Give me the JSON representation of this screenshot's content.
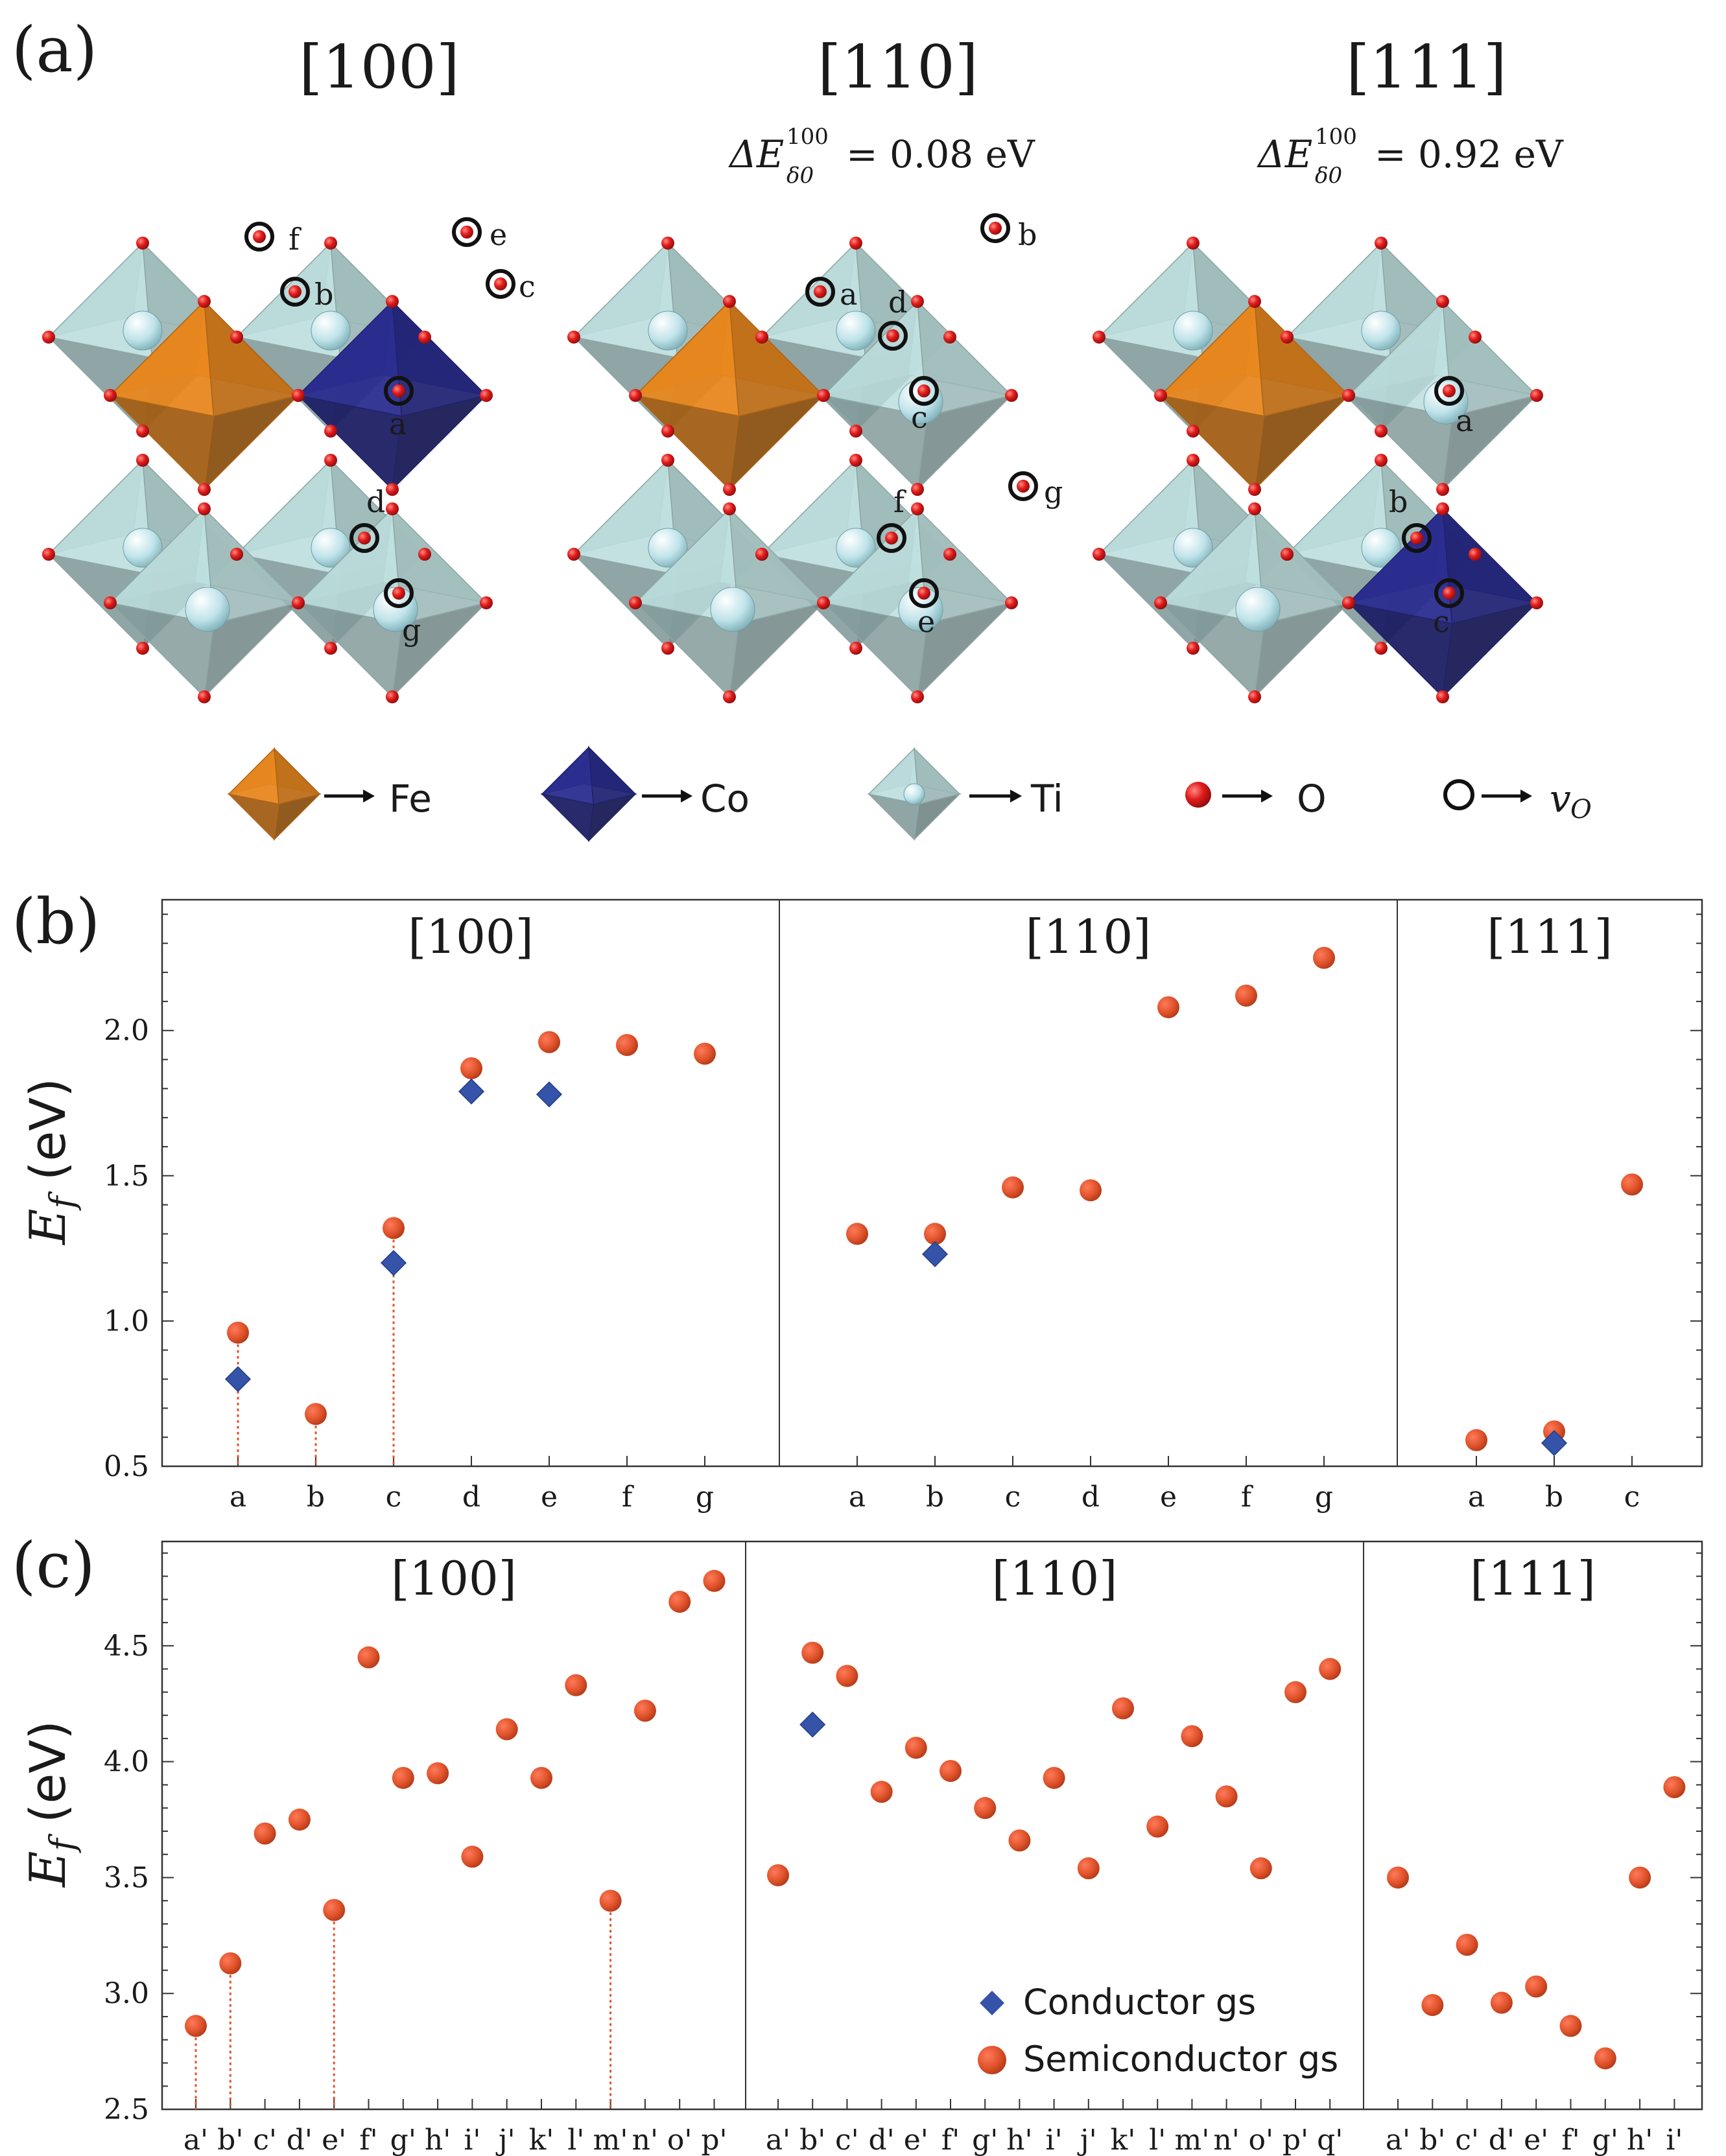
{
  "panel_a": {
    "label": "(a)",
    "columns": [
      {
        "title": "[100]",
        "energy": ""
      },
      {
        "title": "[110]",
        "energy": "ΔE = 0.08 eV",
        "energy_value": "= 0.08 eV"
      },
      {
        "title": "[111]",
        "energy": "ΔE = 0.92 eV",
        "energy_value": "= 0.92 eV"
      }
    ],
    "delta_symbol": "ΔE",
    "delta_sup": "100",
    "delta_sub": "δ0",
    "site_labels": {
      "s100": [
        "f",
        "e",
        "b",
        "c",
        "a",
        "d",
        "g"
      ],
      "s110": [
        "a",
        "b",
        "d",
        "c",
        "f",
        "g",
        "e"
      ],
      "s111": [
        "a",
        "b",
        "c"
      ]
    },
    "legend": [
      {
        "label": "Fe",
        "color": "#e8871f"
      },
      {
        "label": "Co",
        "color": "#2b2d8f"
      },
      {
        "label": "Ti",
        "color": "#b8dcdc"
      },
      {
        "label": "O",
        "color": "#e01b1b"
      },
      {
        "label": "v",
        "sub": "O"
      }
    ],
    "colors": {
      "fe": "#e8871f",
      "co": "#2b2d8f",
      "ti": "#bcdedd",
      "o": "#e01b1b"
    }
  },
  "chart_data": [
    {
      "type": "scatter",
      "panel_label": "(b)",
      "ylabel": "E",
      "ylabel_sub": "f",
      "ylabel_unit": " (eV)",
      "ylim": [
        0.5,
        2.45
      ],
      "yticks": [
        "0.5",
        "1.0",
        "1.5",
        "2.0"
      ],
      "groups": [
        {
          "title": "[100]",
          "categories": [
            "a",
            "b",
            "c",
            "d",
            "e",
            "f",
            "g"
          ],
          "semiconductor": [
            0.96,
            0.68,
            1.32,
            1.87,
            1.96,
            1.95,
            1.92
          ],
          "conductor": [
            0.8,
            null,
            1.2,
            1.79,
            1.78,
            null,
            null
          ],
          "dotted_drop": [
            true,
            true,
            true,
            false,
            false,
            false,
            false
          ]
        },
        {
          "title": "[110]",
          "categories": [
            "a",
            "b",
            "c",
            "d",
            "e",
            "f",
            "g"
          ],
          "semiconductor": [
            1.3,
            1.3,
            1.46,
            1.45,
            2.08,
            2.12,
            2.25
          ],
          "conductor": [
            null,
            1.23,
            null,
            null,
            null,
            null,
            null
          ],
          "dotted_drop": [
            false,
            false,
            false,
            false,
            false,
            false,
            false
          ]
        },
        {
          "title": "[111]",
          "categories": [
            "a",
            "b",
            "c"
          ],
          "semiconductor": [
            0.59,
            0.62,
            1.47
          ],
          "conductor": [
            null,
            0.58,
            null
          ],
          "dotted_drop": [
            false,
            false,
            false
          ]
        }
      ]
    },
    {
      "type": "scatter",
      "panel_label": "(c)",
      "ylabel": "E",
      "ylabel_sub": "f",
      "ylabel_unit": " (eV)",
      "ylim": [
        2.5,
        4.95
      ],
      "yticks": [
        "2.5",
        "3.0",
        "3.5",
        "4.0",
        "4.5"
      ],
      "groups": [
        {
          "title": "[100]",
          "categories": [
            "a'",
            "b'",
            "c'",
            "d'",
            "e'",
            "f'",
            "g'",
            "h'",
            "i'",
            "j'",
            "k'",
            "l'",
            "m'",
            "n'",
            "o'",
            "p'"
          ],
          "semiconductor": [
            2.86,
            3.13,
            3.69,
            3.75,
            3.36,
            4.45,
            3.93,
            3.95,
            3.59,
            4.14,
            3.93,
            4.33,
            3.4,
            4.22,
            4.69,
            4.78
          ],
          "conductor": [
            null,
            null,
            null,
            null,
            null,
            null,
            null,
            null,
            null,
            null,
            null,
            null,
            null,
            null,
            null,
            null
          ],
          "dotted_drop": [
            true,
            true,
            false,
            false,
            true,
            false,
            false,
            false,
            false,
            false,
            false,
            false,
            true,
            false,
            false,
            false
          ]
        },
        {
          "title": "[110]",
          "categories": [
            "a'",
            "b'",
            "c'",
            "d'",
            "e'",
            "f'",
            "g'",
            "h'",
            "i'",
            "j'",
            "k'",
            "l'",
            "m'",
            "n'",
            "o'",
            "p'",
            "q'"
          ],
          "semiconductor": [
            3.51,
            4.47,
            4.37,
            3.87,
            4.06,
            3.96,
            3.8,
            3.66,
            3.93,
            3.54,
            4.23,
            3.72,
            4.11,
            3.85,
            3.54,
            4.3,
            4.4
          ],
          "conductor": [
            null,
            4.16,
            null,
            null,
            null,
            null,
            null,
            null,
            null,
            null,
            null,
            null,
            null,
            null,
            null,
            null,
            null
          ],
          "dotted_drop": [
            false,
            false,
            false,
            false,
            false,
            false,
            false,
            false,
            false,
            false,
            false,
            false,
            false,
            false,
            false,
            false,
            false
          ]
        },
        {
          "title": "[111]",
          "categories": [
            "a'",
            "b'",
            "c'",
            "d'",
            "e'",
            "f'",
            "g'",
            "h'",
            "i'"
          ],
          "semiconductor": [
            3.5,
            2.95,
            3.21,
            2.96,
            3.03,
            2.86,
            2.72,
            3.5,
            3.89
          ],
          "conductor": [
            null,
            null,
            null,
            null,
            null,
            null,
            null,
            null,
            null
          ],
          "dotted_drop": [
            false,
            false,
            false,
            false,
            false,
            false,
            false,
            false,
            false
          ]
        }
      ],
      "legend": [
        {
          "label": "Conductor gs",
          "marker": "diamond"
        },
        {
          "label": "Semiconductor gs",
          "marker": "circle"
        }
      ],
      "legend_position": "bottom-right"
    }
  ],
  "colors": {
    "semiconductor": "#e0532b",
    "conductor": "#3553a8",
    "dotted": "#e0532b",
    "axis": "#333333"
  }
}
